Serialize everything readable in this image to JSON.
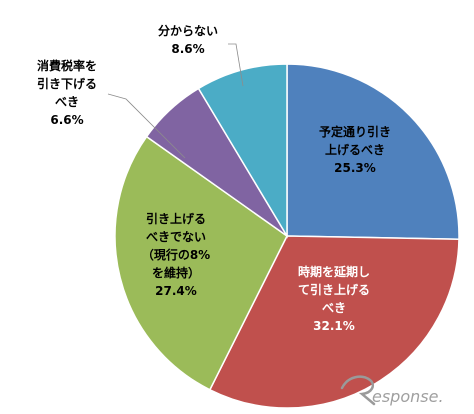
{
  "chart_data": {
    "type": "pie",
    "title": "",
    "start_angle_deg": 0,
    "direction": "clockwise",
    "slices": [
      {
        "lines": [
          "予定通り引き",
          "上げるべき"
        ],
        "value": 25.3,
        "value_label": "25.3%",
        "color": "#4f81bd"
      },
      {
        "lines": [
          "時期を延期し",
          "て引き上げる",
          "べき"
        ],
        "value": 32.1,
        "value_label": "32.1%",
        "color": "#c0504d"
      },
      {
        "lines": [
          "引き上げる",
          "べきでない",
          "（現行の8%",
          "を維持）"
        ],
        "value": 27.4,
        "value_label": "27.4%",
        "color": "#9bbb59"
      },
      {
        "lines": [
          "消費税率を",
          "引き下げる",
          "べき"
        ],
        "value": 6.6,
        "value_label": "6.6%",
        "color": "#8064a2"
      },
      {
        "lines": [
          "分からない"
        ],
        "value": 8.6,
        "value_label": "8.6%",
        "color": "#4bacc6"
      }
    ]
  },
  "watermark": {
    "text": "esponse.",
    "icon": "response-logo-r-icon"
  }
}
